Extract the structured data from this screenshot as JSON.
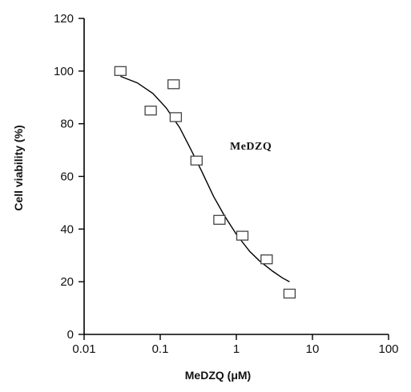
{
  "chart_data": {
    "type": "scatter",
    "title": "",
    "xlabel": "MeDZQ (μM)",
    "ylabel": "Cell viability (%)",
    "x_scale": "log",
    "xlim": [
      0.01,
      100
    ],
    "ylim": [
      0,
      120
    ],
    "x_ticks": [
      0.01,
      0.1,
      1,
      10,
      100
    ],
    "x_tick_labels": [
      "0.01",
      "0.1",
      "1",
      "10",
      "100"
    ],
    "y_ticks": [
      0,
      20,
      40,
      60,
      80,
      100,
      120
    ],
    "y_tick_labels": [
      "0",
      "20",
      "40",
      "60",
      "80",
      "100",
      "120"
    ],
    "grid": false,
    "legend": "none",
    "annotation": "MeDZQ",
    "series": [
      {
        "marker": "open-square",
        "x": [
          0.03,
          0.075,
          0.15,
          0.16,
          0.3,
          0.6,
          1.2,
          2.5,
          5.0
        ],
        "y": [
          100,
          85,
          95,
          82.5,
          66,
          43.5,
          37.5,
          28.5,
          15.5
        ]
      }
    ],
    "fit_curve": {
      "kind": "sigmoid",
      "x": [
        0.03,
        0.05,
        0.08,
        0.12,
        0.18,
        0.25,
        0.35,
        0.5,
        0.7,
        1.0,
        1.5,
        2.0,
        3.0,
        4.0,
        5.0
      ],
      "y": [
        98,
        95.5,
        91.5,
        86,
        78.5,
        70.5,
        62,
        52.5,
        45,
        38,
        31.5,
        28,
        24,
        21.5,
        20
      ]
    }
  }
}
